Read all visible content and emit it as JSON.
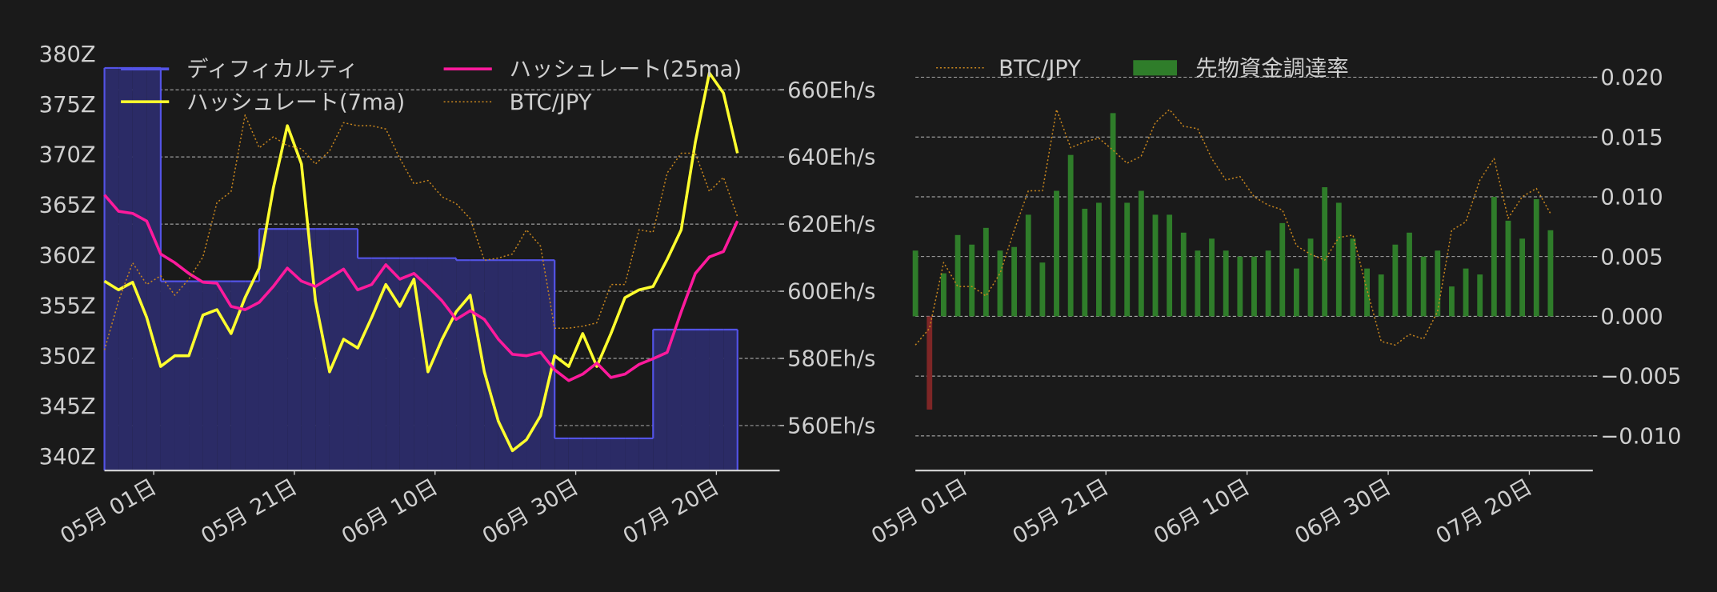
{
  "chart_data": [
    {
      "type": "line",
      "x": [
        "04-24",
        "04-26",
        "04-28",
        "04-30",
        "05-02",
        "05-04",
        "05-06",
        "05-08",
        "05-10",
        "05-12",
        "05-14",
        "05-16",
        "05-18",
        "05-20",
        "05-22",
        "05-24",
        "05-26",
        "05-28",
        "05-30",
        "06-01",
        "06-03",
        "06-05",
        "06-07",
        "06-09",
        "06-11",
        "06-13",
        "06-15",
        "06-17",
        "06-19",
        "06-21",
        "06-23",
        "06-25",
        "06-27",
        "06-29",
        "07-01",
        "07-03",
        "07-05",
        "07-07",
        "07-09",
        "07-11",
        "07-13",
        "07-15",
        "07-17",
        "07-19",
        "07-21",
        "07-23"
      ],
      "xlim": [
        "04-24",
        "07-29"
      ],
      "xticks": [
        {
          "value": "05-01",
          "label": "05月 01日"
        },
        {
          "value": "05-21",
          "label": "05月 21日"
        },
        {
          "value": "06-10",
          "label": "06月 10日"
        },
        {
          "value": "06-30",
          "label": "06月 30日"
        },
        {
          "value": "07-20",
          "label": "07月 20日"
        }
      ],
      "ylim": [
        338.6,
        381
      ],
      "yticks": [
        {
          "value": 340,
          "label": "340Z"
        },
        {
          "value": 345,
          "label": "345Z"
        },
        {
          "value": 350,
          "label": "350Z"
        },
        {
          "value": 355,
          "label": "355Z"
        },
        {
          "value": 360,
          "label": "360Z"
        },
        {
          "value": 365,
          "label": "365Z"
        },
        {
          "value": 370,
          "label": "370Z"
        },
        {
          "value": 375,
          "label": "375Z"
        },
        {
          "value": 380,
          "label": "380Z"
        }
      ],
      "y2lim": [
        546.6,
        673.7
      ],
      "y2ticks": [
        {
          "value": 560,
          "label": "560Eh/s"
        },
        {
          "value": 580,
          "label": "580Eh/s"
        },
        {
          "value": 600,
          "label": "600Eh/s"
        },
        {
          "value": 620,
          "label": "620Eh/s"
        },
        {
          "value": 640,
          "label": "640Eh/s"
        },
        {
          "value": 660,
          "label": "660Eh/s"
        }
      ],
      "grid": "y2",
      "series": [
        {
          "name": "ディフィカルティ",
          "color": "#5353e6",
          "fill": "#2b2b66",
          "step": true,
          "values": [
            378.6,
            378.6,
            378.6,
            378.6,
            357.4,
            357.4,
            357.4,
            357.4,
            357.4,
            357.4,
            357.4,
            362.6,
            362.6,
            362.6,
            362.6,
            362.6,
            362.6,
            362.6,
            359.7,
            359.7,
            359.7,
            359.7,
            359.7,
            359.7,
            359.7,
            359.5,
            359.5,
            359.5,
            359.5,
            359.5,
            359.5,
            359.5,
            341.8,
            341.8,
            341.8,
            341.8,
            341.8,
            341.8,
            341.8,
            352.6,
            352.6,
            352.6,
            352.6,
            352.6,
            352.6,
            352.6
          ]
        },
        {
          "name": "ハッシュレート(7ma)",
          "color": "#ffff2e",
          "axis": "y2",
          "values": [
            603,
            600.4,
            602.7,
            592.2,
            577.6,
            580.8,
            580.8,
            592.9,
            594.5,
            587.4,
            598.1,
            606.9,
            630.7,
            649.3,
            637.9,
            597.1,
            576,
            585.7,
            583.1,
            592.2,
            602,
            595.5,
            603.6,
            576,
            585.7,
            593.9,
            598.8,
            576,
            561.3,
            552.5,
            555.8,
            562.9,
            580.8,
            577.6,
            587.4,
            577.6,
            587.4,
            598.1,
            600.4,
            601.4,
            609.5,
            618.3,
            644.4,
            665,
            659,
            641.1
          ]
        },
        {
          "name": "ハッシュレート(25ma)",
          "color": "#ff1a9c",
          "axis": "y2",
          "values": [
            628.7,
            623.8,
            623.2,
            620.9,
            611.1,
            608.5,
            605.3,
            602.7,
            602.4,
            595.5,
            594.5,
            596.7,
            601.4,
            606.9,
            603,
            601.4,
            604,
            606.6,
            600.4,
            602,
            607.9,
            603.6,
            605.3,
            601.4,
            597.1,
            591.6,
            594.2,
            591.6,
            585.7,
            581.2,
            580.8,
            581.8,
            576.6,
            573.4,
            575.3,
            578.6,
            574.3,
            575.3,
            578.2,
            579.9,
            581.8,
            593.9,
            605.3,
            610.2,
            611.8,
            620.9
          ]
        },
        {
          "name": "BTC/JPY",
          "color": "#c8861e",
          "linestyle": "dotted",
          "axis": "y2",
          "values": [
            582.5,
            597.1,
            608.5,
            602,
            604.6,
            598.8,
            603.6,
            610.2,
            626.4,
            629.7,
            652.5,
            642.7,
            646,
            643.4,
            642.4,
            637.9,
            641.8,
            650.2,
            649.3,
            649.3,
            648.3,
            639.5,
            632,
            633,
            628.1,
            626.1,
            621.6,
            609.2,
            609.9,
            611.1,
            618.3,
            613.4,
            589,
            589,
            589.6,
            590.6,
            602,
            602,
            618.3,
            617.6,
            635.2,
            641.1,
            641.1,
            629.7,
            633.9,
            622.2
          ]
        }
      ]
    },
    {
      "type": "bar",
      "x": [
        "04-24",
        "04-26",
        "04-28",
        "04-30",
        "05-02",
        "05-04",
        "05-06",
        "05-08",
        "05-10",
        "05-12",
        "05-14",
        "05-16",
        "05-18",
        "05-20",
        "05-22",
        "05-24",
        "05-26",
        "05-28",
        "05-30",
        "06-01",
        "06-03",
        "06-05",
        "06-07",
        "06-09",
        "06-11",
        "06-13",
        "06-15",
        "06-17",
        "06-19",
        "06-21",
        "06-23",
        "06-25",
        "06-27",
        "06-29",
        "07-01",
        "07-03",
        "07-05",
        "07-07",
        "07-09",
        "07-11",
        "07-13",
        "07-15",
        "07-17",
        "07-19",
        "07-21",
        "07-23"
      ],
      "xlim": [
        "04-24",
        "07-29"
      ],
      "xticks": [
        {
          "value": "05-01",
          "label": "05月 01日"
        },
        {
          "value": "05-21",
          "label": "05月 21日"
        },
        {
          "value": "06-10",
          "label": "06月 10日"
        },
        {
          "value": "06-30",
          "label": "06月 30日"
        },
        {
          "value": "07-20",
          "label": "07月 20日"
        }
      ],
      "ylim": [
        -0.0129,
        0.0228
      ],
      "yticks": [
        {
          "value": -0.01,
          "label": "−0.010"
        },
        {
          "value": -0.005,
          "label": "−0.005"
        },
        {
          "value": 0,
          "label": "0.000"
        },
        {
          "value": 0.005,
          "label": "0.005"
        },
        {
          "value": 0.01,
          "label": "0.010"
        },
        {
          "value": 0.015,
          "label": "0.015"
        },
        {
          "value": 0.02,
          "label": "0.020"
        }
      ],
      "yaxis_side": "right",
      "grid": "y",
      "series": [
        {
          "name": "BTC/JPY",
          "type": "line",
          "color": "#c8861e",
          "linestyle": "dotted",
          "values": [
            -0.0024,
            -0.001,
            0.0045,
            0.0025,
            0.0025,
            0.0017,
            0.0036,
            0.0072,
            0.0105,
            0.0105,
            0.0173,
            0.0141,
            0.0146,
            0.0149,
            0.0139,
            0.0128,
            0.0134,
            0.0162,
            0.0173,
            0.0159,
            0.0157,
            0.0132,
            0.0114,
            0.0117,
            0.01,
            0.0093,
            0.0089,
            0.0059,
            0.0052,
            0.0047,
            0.0066,
            0.0068,
            0.0022,
            -0.0021,
            -0.0024,
            -0.0015,
            -0.0019,
            0.0004,
            0.0072,
            0.0079,
            0.0114,
            0.0132,
            0.0082,
            0.01,
            0.0107,
            0.0086
          ]
        },
        {
          "name": "先物資金調達率",
          "type": "bar",
          "color": "#2f7d2a",
          "negative_color": "#7e2626",
          "values": [
            0.0055,
            -0.0078,
            0.0036,
            0.0068,
            0.006,
            0.0074,
            0.0055,
            0.0058,
            0.0085,
            0.0045,
            0.0105,
            0.0135,
            0.009,
            0.0095,
            0.017,
            0.0095,
            0.0105,
            0.0085,
            0.0085,
            0.007,
            0.0055,
            0.0065,
            0.0055,
            0.005,
            0.005,
            0.0055,
            0.0078,
            0.004,
            0.0065,
            0.0108,
            0.0095,
            0.0065,
            0.004,
            0.0035,
            0.006,
            0.007,
            0.005,
            0.0055,
            0.0025,
            0.004,
            0.0035,
            0.01,
            0.008,
            0.0065,
            0.0098,
            0.0072
          ]
        }
      ]
    }
  ]
}
